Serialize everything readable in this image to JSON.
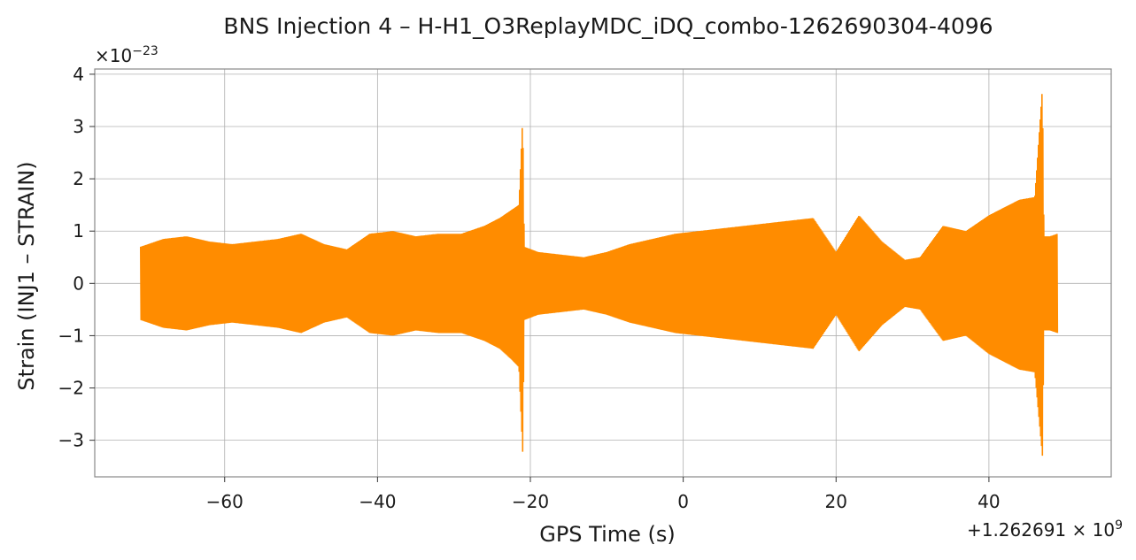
{
  "chart_data": {
    "type": "line",
    "title": "BNS Injection 4 – H-H1_O3ReplayMDC_iDQ_combo-1262690304-4096",
    "xlabel": "GPS Time (s)",
    "ylabel": "Strain (INJ1 – STRAIN)",
    "x_offset_label": "+1.262691 × 10⁹",
    "x_offset_base": "+1.262691 × 10",
    "x_offset_exp": "9",
    "y_multiplier_base": "×10",
    "y_multiplier_exp": "−23",
    "xlim": [
      -77,
      56
    ],
    "ylim": [
      -3.7,
      4.1
    ],
    "x_ticks": [
      -60,
      -40,
      -20,
      0,
      20,
      40
    ],
    "x_tick_labels": [
      "−60",
      "−40",
      "−20",
      "0",
      "20",
      "40"
    ],
    "y_ticks": [
      -3,
      -2,
      -1,
      0,
      1,
      2,
      3,
      4
    ],
    "y_tick_labels": [
      "−3",
      "−2",
      "−1",
      "0",
      "1",
      "2",
      "3",
      "4"
    ],
    "grid": true,
    "series": [
      {
        "color": "#ff8c00",
        "x_range": [
          -71,
          49
        ],
        "envelope": {
          "x": [
            -71,
            -68,
            -65,
            -62,
            -59,
            -56,
            -53,
            -50,
            -47,
            -44,
            -41,
            -38,
            -35,
            -32,
            -29,
            -26,
            -24,
            -22.5,
            -21.5,
            -21,
            -20.8,
            -19,
            -16,
            -13,
            -10,
            -7,
            -4,
            -1,
            2,
            5,
            8,
            11,
            14,
            17,
            20,
            23,
            26,
            29,
            31,
            34,
            37,
            40,
            42,
            44,
            46,
            47,
            47.2,
            48,
            49
          ],
          "upper": [
            0.7,
            0.85,
            0.9,
            0.8,
            0.75,
            0.8,
            0.85,
            0.95,
            0.75,
            0.65,
            0.95,
            1.0,
            0.9,
            0.95,
            0.95,
            1.1,
            1.25,
            1.4,
            1.5,
            3.2,
            0.7,
            0.6,
            0.55,
            0.5,
            0.6,
            0.75,
            0.85,
            0.95,
            1.0,
            1.05,
            1.1,
            1.15,
            1.2,
            1.25,
            0.6,
            1.3,
            0.8,
            0.45,
            0.5,
            1.1,
            1.0,
            1.3,
            1.45,
            1.6,
            1.65,
            3.75,
            0.9,
            0.9,
            0.95
          ],
          "lower": [
            -0.7,
            -0.85,
            -0.9,
            -0.8,
            -0.75,
            -0.8,
            -0.85,
            -0.95,
            -0.75,
            -0.65,
            -0.95,
            -1.0,
            -0.9,
            -0.95,
            -0.95,
            -1.1,
            -1.25,
            -1.45,
            -1.6,
            -3.25,
            -0.7,
            -0.6,
            -0.55,
            -0.5,
            -0.6,
            -0.75,
            -0.85,
            -0.95,
            -1.0,
            -1.05,
            -1.1,
            -1.15,
            -1.2,
            -1.25,
            -0.6,
            -1.3,
            -0.8,
            -0.45,
            -0.5,
            -1.1,
            -1.0,
            -1.35,
            -1.5,
            -1.65,
            -1.7,
            -3.3,
            -0.9,
            -0.9,
            -0.95
          ]
        }
      }
    ]
  }
}
